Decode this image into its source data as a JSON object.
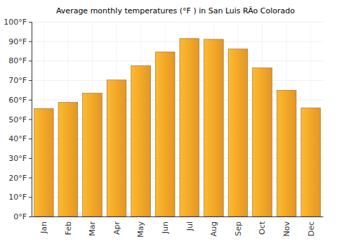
{
  "chart_data": {
    "type": "bar",
    "title": "Average monthly temperatures (°F ) in San Luis RÃo Colorado",
    "categories": [
      "Jan",
      "Feb",
      "Mar",
      "Apr",
      "May",
      "Jun",
      "Jul",
      "Aug",
      "Sep",
      "Oct",
      "Nov",
      "Dec"
    ],
    "values": [
      55.4,
      58.6,
      63.3,
      70.1,
      77.4,
      84.5,
      91.4,
      91.0,
      86.0,
      76.3,
      64.8,
      55.7
    ],
    "color": "#f9a428",
    "ylim": [
      0,
      100
    ],
    "yticks": [
      {
        "value": 0,
        "label": "0°F"
      },
      {
        "value": 10,
        "label": "10°F"
      },
      {
        "value": 20,
        "label": "20°F"
      },
      {
        "value": 30,
        "label": "30°F"
      },
      {
        "value": 40,
        "label": "40°F"
      },
      {
        "value": 50,
        "label": "50°F"
      },
      {
        "value": 60,
        "label": "60°F"
      },
      {
        "value": 70,
        "label": "70°F"
      },
      {
        "value": 80,
        "label": "80°F"
      },
      {
        "value": 90,
        "label": "90°F"
      },
      {
        "value": 100,
        "label": "100°F"
      }
    ],
    "grid": true
  }
}
